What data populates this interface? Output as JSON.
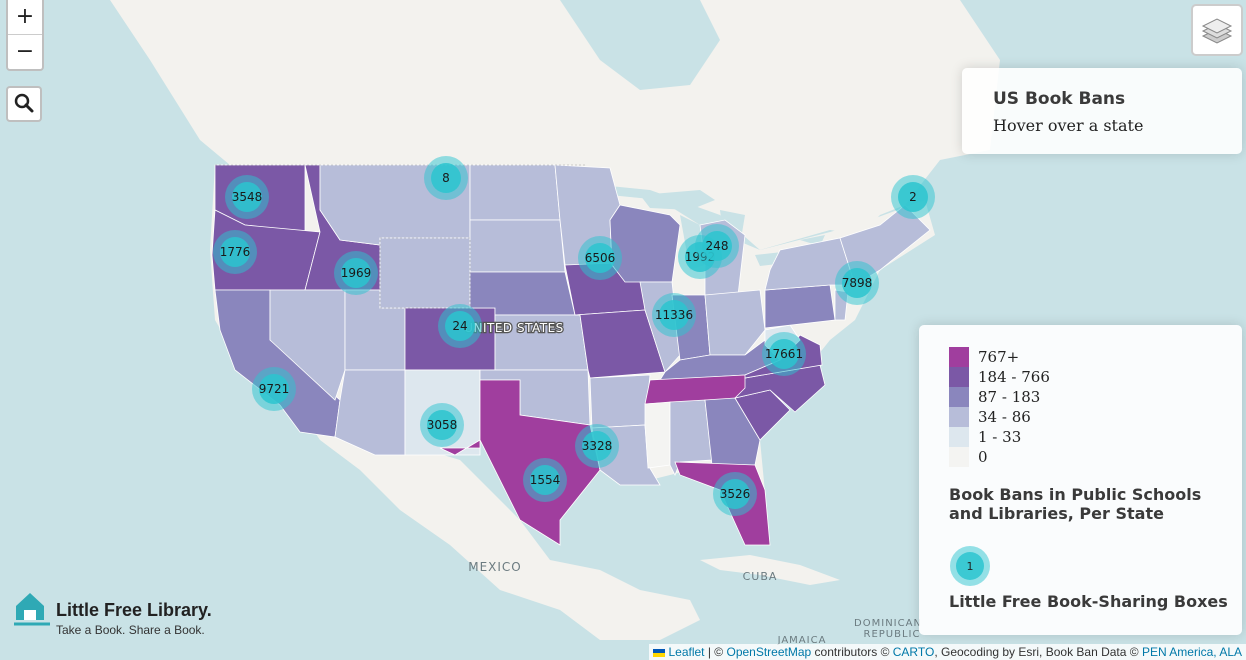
{
  "map": {
    "country_label": "UNITED STATES",
    "place_labels": [
      "MEXICO",
      "CUBA",
      "DOMINICAN",
      "REPUBLIC",
      "JAMAICA"
    ],
    "zoom_in": "+",
    "zoom_out": "−",
    "clusters": [
      "3548",
      "1776",
      "1969",
      "8",
      "6506",
      "1992",
      "248",
      "2",
      "7898",
      "11336",
      "24",
      "17661",
      "9721",
      "3058",
      "3328",
      "1554",
      "3526"
    ]
  },
  "info": {
    "title": "US Book Bans",
    "subtitle": "Hover over a state"
  },
  "legend": {
    "classes": [
      {
        "label": "767+",
        "color": "#a03e9e"
      },
      {
        "label": "184 - 766",
        "color": "#7b58a6"
      },
      {
        "label": "87 - 183",
        "color": "#8a86bd"
      },
      {
        "label": "34 - 86",
        "color": "#b7bdd9"
      },
      {
        "label": "1 - 33",
        "color": "#dde7ee"
      },
      {
        "label": "0",
        "color": "#f4f4f2"
      }
    ],
    "title": "Book Bans in Public Schools and Libraries, Per State",
    "marker_value": "1",
    "marker_label": "Little Free Book-Sharing Boxes"
  },
  "logo": {
    "name": "Little Free Library.",
    "tagline": "Take a Book. Share a Book."
  },
  "attribution": {
    "leaflet": "Leaflet",
    "sep1": " | © ",
    "osm": "OpenStreetMap",
    "mid": " contributors © ",
    "carto": "CARTO",
    "tail": ", Geocoding by Esri, Book Ban Data © ",
    "pen": "PEN America, ALA"
  },
  "colors": {
    "water": "#c9e2e6",
    "land": "#f3f2ee",
    "marker": "#2bc4cf"
  }
}
